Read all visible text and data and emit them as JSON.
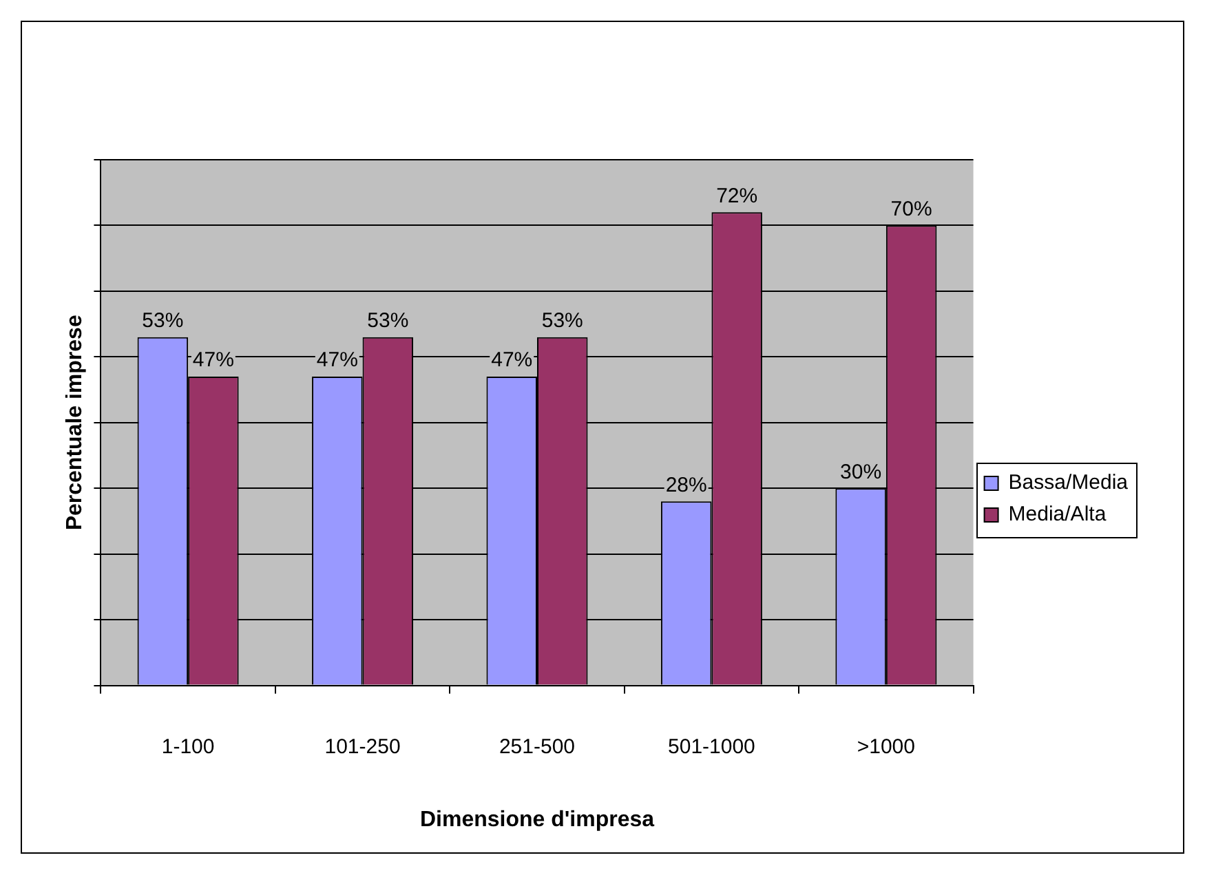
{
  "chart_data": {
    "type": "bar",
    "xlabel": "Dimensione d'impresa",
    "ylabel": "Percentuale imprese",
    "categories": [
      "1-100",
      "101-250",
      "251-500",
      "501-1000",
      ">1000"
    ],
    "series": [
      {
        "name": "Bassa/Media",
        "color": "#9999ff",
        "values": [
          53,
          47,
          47,
          28,
          30
        ],
        "value_labels": [
          "53%",
          "47%",
          "47%",
          "28%",
          "30%"
        ]
      },
      {
        "name": "Media/Alta",
        "color": "#993366",
        "values": [
          47,
          53,
          53,
          72,
          70
        ],
        "value_labels": [
          "47%",
          "53%",
          "53%",
          "72%",
          "70%"
        ]
      }
    ],
    "ylim": [
      0,
      80
    ],
    "yticks": [
      {
        "value": 0,
        "label": null
      },
      {
        "value": 10,
        "label": null
      },
      {
        "value": 20,
        "label": null
      },
      {
        "value": 30,
        "label": null
      },
      {
        "value": 40,
        "label": null
      },
      {
        "value": 50,
        "label": null
      },
      {
        "value": 60,
        "label": null
      },
      {
        "value": 70,
        "label": null
      },
      {
        "value": 80,
        "label": null
      }
    ],
    "grid": "y",
    "legend": "right",
    "tick_labels": "x"
  }
}
